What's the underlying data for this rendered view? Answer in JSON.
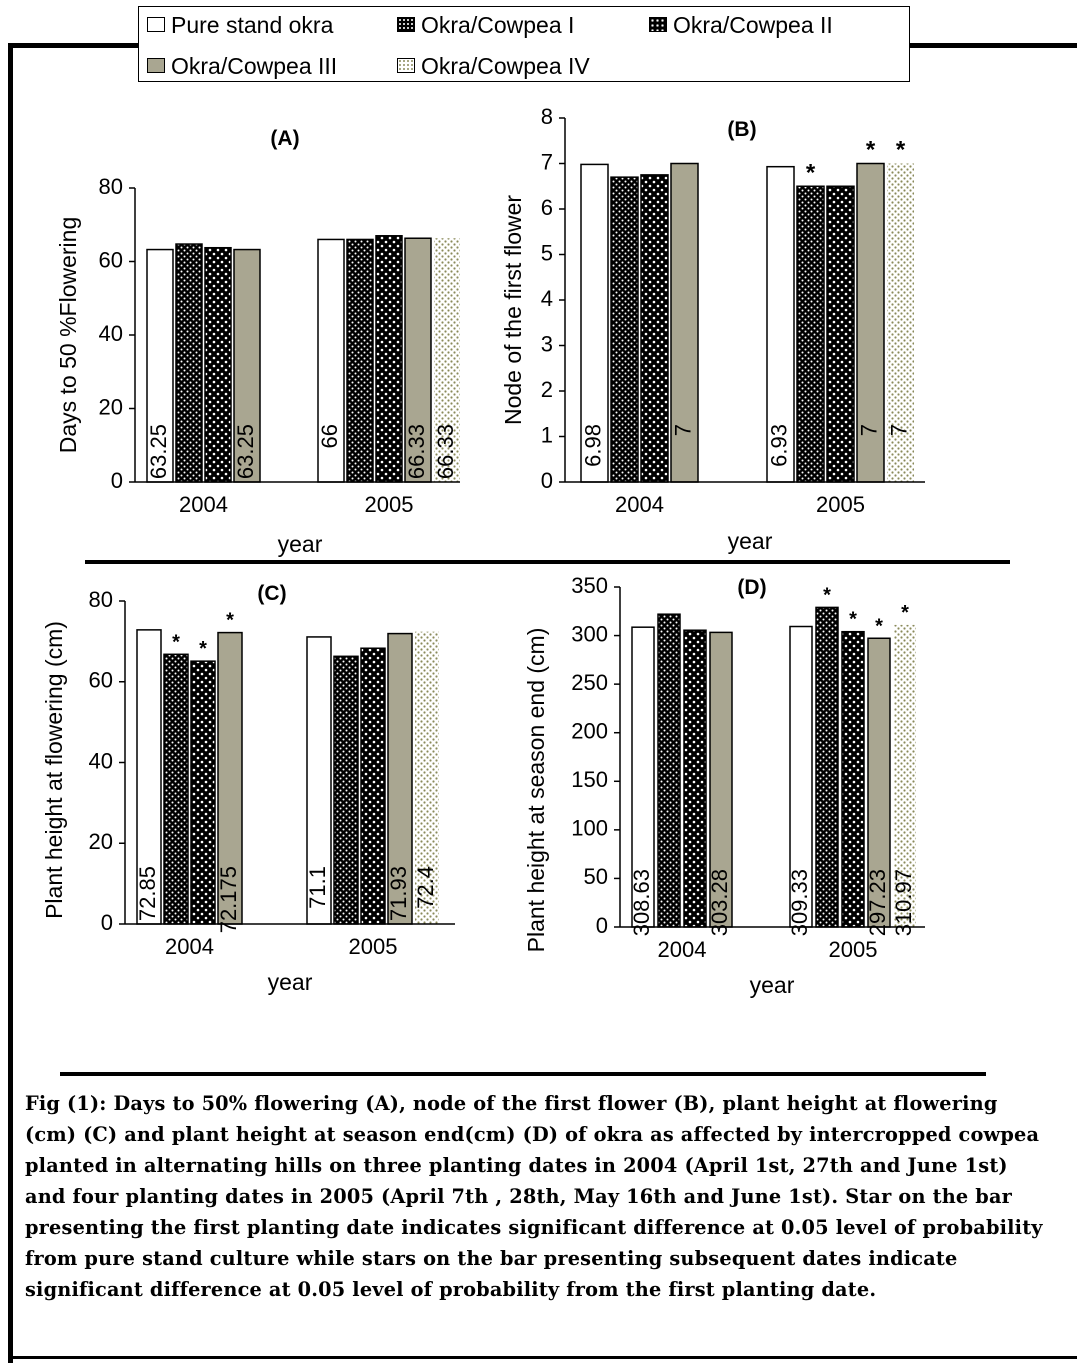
{
  "legend": {
    "items": [
      {
        "label": "Pure stand okra",
        "pattern": "white"
      },
      {
        "label": "Okra/Cowpea I",
        "pattern": "dots-dense"
      },
      {
        "label": "Okra/Cowpea II",
        "pattern": "dots-sparse"
      },
      {
        "label": "Okra/Cowpea III",
        "pattern": "gray"
      },
      {
        "label": "Okra/Cowpea IV",
        "pattern": "dotted-white"
      }
    ]
  },
  "colors": {
    "gray_fill": "#a9a691",
    "dot_olive": "#8a8a5a",
    "black": "#000000"
  },
  "chart_data": [
    {
      "type": "bar",
      "panel": "(A)",
      "title": "(A)",
      "ylabel": "Days to 50 %Flowering",
      "xlabel": "year",
      "ylim": [
        0,
        80
      ],
      "yticks": [
        "0",
        "20",
        "40",
        "60",
        "80"
      ],
      "categories": [
        "2004",
        "2005"
      ],
      "series": [
        {
          "name": "Pure stand okra",
          "values": [
            63.25,
            66
          ],
          "labels": [
            "63.25",
            "66"
          ]
        },
        {
          "name": "Okra/Cowpea I",
          "values": [
            64.75,
            66
          ],
          "labels": [
            "",
            ""
          ]
        },
        {
          "name": "Okra/Cowpea II",
          "values": [
            63.75,
            67
          ],
          "labels": [
            "",
            ""
          ]
        },
        {
          "name": "Okra/Cowpea III",
          "values": [
            63.25,
            66.33
          ],
          "labels": [
            "63.25",
            "66.33"
          ]
        },
        {
          "name": "Okra/Cowpea IV",
          "values": [
            null,
            66.33
          ],
          "labels": [
            "",
            "66.33"
          ]
        }
      ],
      "stars": []
    },
    {
      "type": "bar",
      "panel": "(B)",
      "title": "(B)",
      "ylabel": "Node of the first flower",
      "xlabel": "year",
      "ylim": [
        0,
        8
      ],
      "yticks": [
        "0",
        "1",
        "2",
        "3",
        "4",
        "5",
        "6",
        "7",
        "8"
      ],
      "categories": [
        "2004",
        "2005"
      ],
      "series": [
        {
          "name": "Pure stand okra",
          "values": [
            6.98,
            6.93
          ],
          "labels": [
            "6.98",
            "6.93"
          ]
        },
        {
          "name": "Okra/Cowpea I",
          "values": [
            6.7,
            6.5
          ],
          "labels": [
            "",
            ""
          ]
        },
        {
          "name": "Okra/Cowpea II",
          "values": [
            6.75,
            6.5
          ],
          "labels": [
            "",
            ""
          ]
        },
        {
          "name": "Okra/Cowpea III",
          "values": [
            7,
            7
          ],
          "labels": [
            "7",
            "7"
          ]
        },
        {
          "name": "Okra/Cowpea IV",
          "values": [
            null,
            7
          ],
          "labels": [
            "",
            "7"
          ]
        }
      ],
      "stars": [
        [
          1,
          1
        ],
        [
          1,
          3
        ],
        [
          1,
          4
        ]
      ]
    },
    {
      "type": "bar",
      "panel": "(C)",
      "title": "(C)",
      "ylabel": "Plant height at flowering (cm)",
      "xlabel": "year",
      "ylim": [
        0,
        80
      ],
      "yticks": [
        "0",
        "20",
        "40",
        "60",
        "80"
      ],
      "categories": [
        "2004",
        "2005"
      ],
      "series": [
        {
          "name": "Pure stand okra",
          "values": [
            72.85,
            71.1
          ],
          "labels": [
            "72.85",
            "71.1"
          ]
        },
        {
          "name": "Okra/Cowpea I",
          "values": [
            66.8,
            66.3
          ],
          "labels": [
            "",
            ""
          ]
        },
        {
          "name": "Okra/Cowpea II",
          "values": [
            65.1,
            68.3
          ],
          "labels": [
            "",
            ""
          ]
        },
        {
          "name": "Okra/Cowpea III",
          "values": [
            72.175,
            71.93
          ],
          "labels": [
            "72.175",
            "71.93"
          ]
        },
        {
          "name": "Okra/Cowpea IV",
          "values": [
            null,
            72.4
          ],
          "labels": [
            "",
            "72.4"
          ]
        }
      ],
      "stars": [
        [
          0,
          1
        ],
        [
          0,
          2
        ],
        [
          0,
          3
        ]
      ]
    },
    {
      "type": "bar",
      "panel": "(D)",
      "title": "(D)",
      "ylabel": "Plant height at season end (cm)",
      "xlabel": "year",
      "ylim": [
        0,
        350
      ],
      "yticks": [
        "0",
        "50",
        "100",
        "150",
        "200",
        "250",
        "300",
        "350"
      ],
      "categories": [
        "2004",
        "2005"
      ],
      "series": [
        {
          "name": "Pure stand okra",
          "values": [
            308.63,
            309.33
          ],
          "labels": [
            "308.63",
            "309.33"
          ]
        },
        {
          "name": "Okra/Cowpea I",
          "values": [
            322,
            329
          ],
          "labels": [
            "",
            ""
          ]
        },
        {
          "name": "Okra/Cowpea II",
          "values": [
            305.5,
            304
          ],
          "labels": [
            "",
            ""
          ]
        },
        {
          "name": "Okra/Cowpea III",
          "values": [
            303.28,
            297.23
          ],
          "labels": [
            "303.28",
            "297.23"
          ]
        },
        {
          "name": "Okra/Cowpea IV",
          "values": [
            null,
            310.97
          ],
          "labels": [
            "",
            "310.97"
          ]
        }
      ],
      "stars": [
        [
          1,
          1
        ],
        [
          1,
          2
        ],
        [
          1,
          3
        ],
        [
          1,
          4
        ]
      ]
    }
  ],
  "caption": {
    "text": "Fig (1): Days to 50% flowering (A), node of the first flower (B), plant height at flowering (cm) (C) and plant height at season end(cm) (D) of okra as affected by intercropped cowpea planted in alternating hills on three planting dates in 2004 (April 1st, 27th and June 1st) and four planting dates in 2005 (April 7th , 28th, May 16th and June 1st). Star on the bar presenting the first planting date indicates significant difference at 0.05 level of probability from pure stand culture while stars on the bar presenting subsequent dates indicate significant difference at 0.05 level of probability from the first planting date."
  }
}
